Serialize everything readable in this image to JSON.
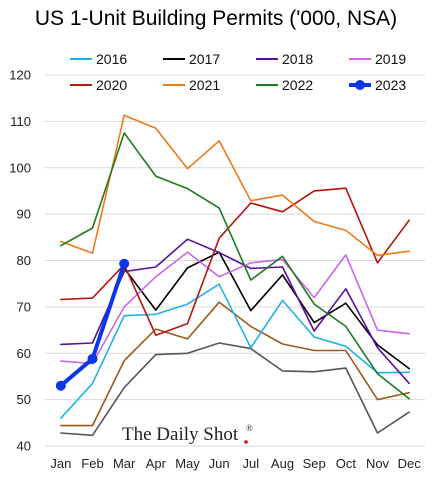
{
  "chart_data": {
    "type": "line",
    "title": "US 1-Unit Building Permits ('000, NSA)",
    "categories": [
      "Jan",
      "Feb",
      "Mar",
      "Apr",
      "May",
      "Jun",
      "Jul",
      "Aug",
      "Sep",
      "Oct",
      "Nov",
      "Dec"
    ],
    "ylim": [
      40,
      120
    ],
    "yticks": [
      40,
      50,
      60,
      70,
      80,
      90,
      100,
      110,
      120
    ],
    "grid": true,
    "legend_position": "top",
    "series": [
      {
        "name": "2016",
        "color": "#1fb2e6",
        "values": [
          46.0,
          53.5,
          68.1,
          68.4,
          70.6,
          74.9,
          61.2,
          71.4,
          63.5,
          61.5,
          55.8,
          55.9
        ]
      },
      {
        "name": "2017",
        "color": "#000000",
        "values": [
          null,
          null,
          78.3,
          69.3,
          78.4,
          81.8,
          69.2,
          76.9,
          66.6,
          70.8,
          61.8,
          56.7
        ]
      },
      {
        "name": "2018",
        "color": "#5a0fa0",
        "values": [
          61.9,
          62.2,
          77.6,
          78.6,
          84.6,
          81.7,
          78.3,
          78.6,
          64.8,
          73.9,
          61.2,
          53.5
        ]
      },
      {
        "name": "2019",
        "color": "#cc66e8",
        "values": [
          58.3,
          57.8,
          70.0,
          76.5,
          81.8,
          76.5,
          79.5,
          80.2,
          72.0,
          81.2,
          65.0,
          64.2
        ]
      },
      {
        "name": "2020",
        "color": "#b5140c",
        "values": [
          71.6,
          71.9,
          79.1,
          63.9,
          66.4,
          84.8,
          92.4,
          90.5,
          95.0,
          95.6,
          79.5,
          88.7
        ]
      },
      {
        "name": "2021",
        "color": "#f07a18",
        "values": [
          84.1,
          81.6,
          111.3,
          108.5,
          99.8,
          105.8,
          92.9,
          94.1,
          88.4,
          86.5,
          81.1,
          82.0
        ]
      },
      {
        "name": "2022",
        "color": "#1e7a1e",
        "values": [
          83.2,
          87.0,
          107.5,
          98.2,
          95.5,
          91.3,
          75.8,
          80.9,
          70.6,
          65.8,
          55.6,
          50.2
        ]
      },
      {
        "name": "2023",
        "color": "#0b36e8",
        "values": [
          53.0,
          58.8,
          79.3,
          null,
          null,
          null,
          null,
          null,
          null,
          null,
          null,
          null
        ]
      }
    ],
    "extra_lines": [
      {
        "color": "#555555",
        "values": [
          42.8,
          42.3,
          52.6,
          59.7,
          60.0,
          62.2,
          61.0,
          56.2,
          56.0,
          56.8,
          42.8,
          47.3
        ]
      },
      {
        "color": "#9a5a1a",
        "values": [
          44.4,
          44.4,
          58.4,
          65.2,
          63.1,
          71.0,
          65.8,
          62.0,
          60.6,
          60.6,
          50.0,
          51.5
        ]
      }
    ]
  },
  "branding": {
    "text": "The Daily Shot",
    "mark": "®"
  }
}
